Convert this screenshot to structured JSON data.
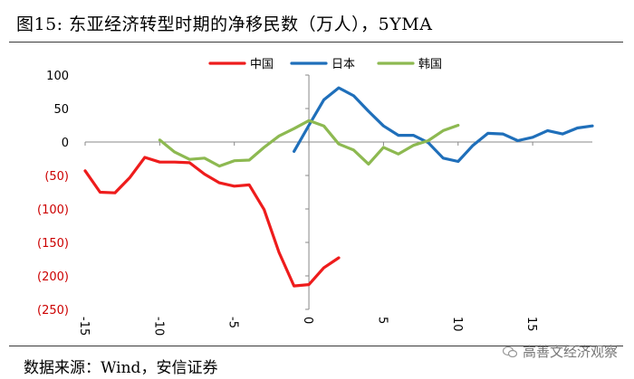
{
  "header": {
    "title": "图15:  东亚经济转型时期的净移民数（万人），5YMA"
  },
  "footer": {
    "source": "数据来源：Wind，安信证券",
    "watermark": "高善文经济观察"
  },
  "colors": {
    "axis": "#888888",
    "negative_tick": "#cc0000",
    "text": "#000000"
  },
  "chart_data": {
    "type": "line",
    "title": "东亚经济转型时期的净移民数（万人），5YMA",
    "xlabel": "",
    "ylabel": "",
    "xlim": [
      -15,
      19
    ],
    "ylim": [
      -250,
      100
    ],
    "x_ticks": [
      -15,
      -10,
      -5,
      0,
      5,
      10,
      15
    ],
    "y_ticks": [
      100,
      50,
      0,
      -50,
      -100,
      -150,
      -200,
      -250
    ],
    "y_tick_labels": [
      "100",
      "50",
      "0",
      "(50)",
      "(100)",
      "(150)",
      "(200)",
      "(250)"
    ],
    "x_tick_labels": [
      "-15",
      "-10",
      "-5",
      "0",
      "5",
      "10",
      "15"
    ],
    "legend_position": "top",
    "series": [
      {
        "name": "中国",
        "color": "#ee1c1c",
        "points": [
          [
            -15,
            -43
          ],
          [
            -14,
            -75
          ],
          [
            -13,
            -76
          ],
          [
            -12,
            -53
          ],
          [
            -11,
            -23
          ],
          [
            -10,
            -30
          ],
          [
            -9,
            -30
          ],
          [
            -8,
            -31
          ],
          [
            -7,
            -48
          ],
          [
            -6,
            -61
          ],
          [
            -5,
            -66
          ],
          [
            -4,
            -64
          ],
          [
            -3,
            -101
          ],
          [
            -2,
            -165
          ],
          [
            -1,
            -215
          ],
          [
            0,
            -213
          ],
          [
            1,
            -188
          ],
          [
            2,
            -173
          ]
        ]
      },
      {
        "name": "日本",
        "color": "#1f6fba",
        "points": [
          [
            -1,
            -14
          ],
          [
            0,
            25
          ],
          [
            1,
            63
          ],
          [
            2,
            81
          ],
          [
            3,
            69
          ],
          [
            4,
            46
          ],
          [
            5,
            24
          ],
          [
            6,
            10
          ],
          [
            7,
            10
          ],
          [
            8,
            -1
          ],
          [
            9,
            -24
          ],
          [
            10,
            -29
          ],
          [
            11,
            -5
          ],
          [
            12,
            13
          ],
          [
            13,
            12
          ],
          [
            14,
            2
          ],
          [
            15,
            7
          ],
          [
            16,
            17
          ],
          [
            17,
            12
          ],
          [
            18,
            21
          ],
          [
            19,
            24
          ]
        ]
      },
      {
        "name": "韩国",
        "color": "#8db951",
        "points": [
          [
            -10,
            3
          ],
          [
            -9,
            -15
          ],
          [
            -8,
            -26
          ],
          [
            -7,
            -24
          ],
          [
            -6,
            -36
          ],
          [
            -5,
            -28
          ],
          [
            -4,
            -27
          ],
          [
            -3,
            -8
          ],
          [
            -2,
            9
          ],
          [
            -1,
            20
          ],
          [
            0,
            32
          ],
          [
            1,
            24
          ],
          [
            2,
            -3
          ],
          [
            3,
            -12
          ],
          [
            4,
            -33
          ],
          [
            5,
            -8
          ],
          [
            6,
            -18
          ],
          [
            7,
            -5
          ],
          [
            8,
            2
          ],
          [
            9,
            17
          ],
          [
            10,
            25
          ]
        ]
      }
    ]
  }
}
